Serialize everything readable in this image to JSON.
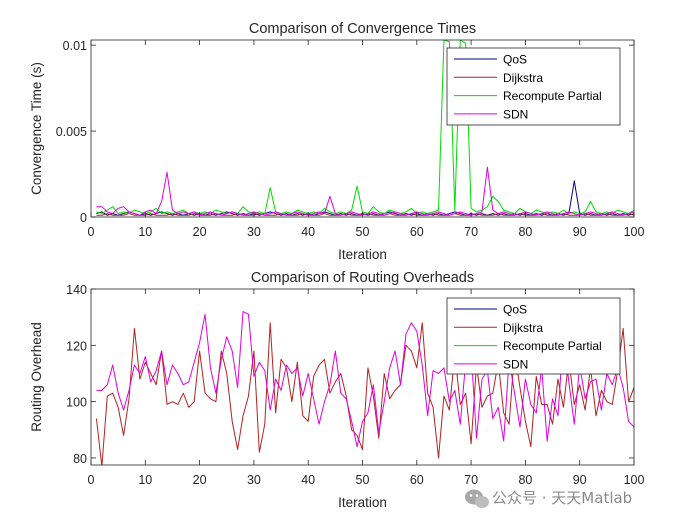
{
  "watermark": {
    "text": "公众号 · 天天Matlab",
    "icon": "wechat-icon"
  },
  "chart_data": [
    {
      "type": "line",
      "title": "Comparison of Convergence Times",
      "xlabel": "Iteration",
      "ylabel": "Convergence Time (s)",
      "xlim": [
        0,
        100
      ],
      "ylim": [
        0,
        0.0103
      ],
      "xticks": [
        0,
        10,
        20,
        30,
        40,
        50,
        60,
        70,
        80,
        90,
        100
      ],
      "xtick_labels": [
        "0",
        "10",
        "20",
        "30",
        "40",
        "50",
        "60",
        "70",
        "80",
        "90",
        "100"
      ],
      "yticks": [
        0,
        0.005,
        0.01
      ],
      "ytick_labels": [
        "0",
        "0.005",
        "0.01"
      ],
      "grid": false,
      "legend_position": "top-right",
      "series": [
        {
          "name": "QoS",
          "color": "#00008B",
          "x_start": 1,
          "values": [
            0.0002,
            0.0003,
            0.0001,
            0.0002,
            0.0001,
            0.0002,
            0.0003,
            0.0002,
            0.0001,
            0.0002,
            0.0001,
            0.0002,
            0.0003,
            0.0002,
            0.0001,
            0.0002,
            0.0001,
            0.0002,
            0.0001,
            0.0002,
            0.0001,
            0.0002,
            0.0001,
            0.0002,
            0.0003,
            0.0002,
            0.0001,
            0.0002,
            0.0001,
            0.0002,
            0.0001,
            0.0002,
            0.0003,
            0.0002,
            0.0001,
            0.0002,
            0.0001,
            0.0002,
            0.0001,
            0.0002,
            0.0001,
            0.0002,
            0.0003,
            0.0002,
            0.0001,
            0.0002,
            0.0001,
            0.0002,
            0.0001,
            0.0002,
            0.0001,
            0.0002,
            0.0001,
            0.0002,
            0.0003,
            0.0002,
            0.0001,
            0.0002,
            0.0001,
            0.0002,
            0.0001,
            0.0002,
            0.0001,
            0.0002,
            0.0001,
            0.0002,
            0.0003,
            0.0002,
            0.0001,
            0.0002,
            0.0001,
            0.0002,
            0.0001,
            0.0002,
            0.0001,
            0.0002,
            0.0001,
            0.0002,
            0.0001,
            0.0002,
            0.0001,
            0.0002,
            0.0001,
            0.0002,
            0.0001,
            0.0002,
            0.0001,
            0.0002,
            0.0021,
            0.0002,
            0.0001,
            0.0002,
            0.0001,
            0.0002,
            0.0001,
            0.0002,
            0.0001,
            0.0002,
            0.0001,
            0.0002
          ]
        },
        {
          "name": "Dijkstra",
          "color": "#B22222",
          "x_start": 1,
          "values": [
            0.0001,
            0.0001,
            0.0002,
            0.0001,
            0.0001,
            0.0001,
            0.0002,
            0.0001,
            0.0001,
            0.0001,
            0.0002,
            0.0001,
            0.0001,
            0.0001,
            0.0002,
            0.0001,
            0.0001,
            0.0001,
            0.0002,
            0.0001,
            0.0001,
            0.0001,
            0.0002,
            0.0001,
            0.0001,
            0.0001,
            0.0002,
            0.0001,
            0.0001,
            0.0001,
            0.0002,
            0.0001,
            0.0001,
            0.0001,
            0.0002,
            0.0001,
            0.0001,
            0.0001,
            0.0002,
            0.0001,
            0.0001,
            0.0001,
            0.0002,
            0.0001,
            0.0001,
            0.0001,
            0.0002,
            0.0001,
            0.0001,
            0.0001,
            0.0002,
            0.0001,
            0.0001,
            0.0001,
            0.0002,
            0.0001,
            0.0001,
            0.0001,
            0.0002,
            0.0001,
            0.0001,
            0.0001,
            0.0002,
            0.0001,
            0.0001,
            0.0001,
            0.0002,
            0.0001,
            0.0001,
            0.0001,
            0.0002,
            0.0001,
            0.0001,
            0.0001,
            0.0002,
            0.0001,
            0.0001,
            0.0001,
            0.0002,
            0.0001,
            0.0001,
            0.0001,
            0.0002,
            0.0001,
            0.0001,
            0.0001,
            0.0002,
            0.0001,
            0.0001,
            0.0001,
            0.0002,
            0.0001,
            0.0001,
            0.0001,
            0.0002,
            0.0001,
            0.0001,
            0.0001,
            0.0002,
            0.0001
          ]
        },
        {
          "name": "Recompute Partial",
          "color": "#00DD00",
          "x_start": 1,
          "values": [
            0.0003,
            0.0002,
            0.0004,
            0.0006,
            0.0002,
            0.0003,
            0.0002,
            0.0004,
            0.0003,
            0.0002,
            0.0003,
            0.0005,
            0.0002,
            0.0003,
            0.0002,
            0.0003,
            0.0004,
            0.0002,
            0.0003,
            0.0002,
            0.0003,
            0.0002,
            0.0004,
            0.0003,
            0.0002,
            0.0003,
            0.0002,
            0.0006,
            0.0003,
            0.0002,
            0.0003,
            0.0002,
            0.0017,
            0.0003,
            0.0002,
            0.0003,
            0.0002,
            0.0004,
            0.0003,
            0.0002,
            0.0003,
            0.0002,
            0.0005,
            0.0003,
            0.0002,
            0.0003,
            0.0002,
            0.0004,
            0.0018,
            0.0003,
            0.0002,
            0.0006,
            0.0003,
            0.0002,
            0.0004,
            0.0003,
            0.0002,
            0.0003,
            0.0005,
            0.0002,
            0.0003,
            0.0002,
            0.0003,
            0.0004,
            0.0103,
            0.0102,
            0.0004,
            0.0103,
            0.0101,
            0.0005,
            0.0003,
            0.0004,
            0.0006,
            0.0012,
            0.0009,
            0.0004,
            0.0003,
            0.0002,
            0.0005,
            0.0003,
            0.0002,
            0.0004,
            0.0003,
            0.0002,
            0.0003,
            0.0002,
            0.0004,
            0.0002,
            0.0003,
            0.0002,
            0.0003,
            0.0009,
            0.0003,
            0.0002,
            0.0003,
            0.0002,
            0.0004,
            0.0003,
            0.0002,
            0.0004
          ]
        },
        {
          "name": "SDN",
          "color": "#E000E0",
          "x_start": 1,
          "values": [
            0.0006,
            0.0006,
            0.0003,
            0.0002,
            0.0005,
            0.0006,
            0.0003,
            0.0002,
            0.0001,
            0.0003,
            0.0004,
            0.0002,
            0.0009,
            0.0026,
            0.0004,
            0.0002,
            0.0003,
            0.0002,
            0.0003,
            0.0001,
            0.0002,
            0.0003,
            0.0002,
            0.0001,
            0.0002,
            0.0003,
            0.0002,
            0.0001,
            0.0002,
            0.0003,
            0.0002,
            0.0001,
            0.0002,
            0.0003,
            0.0002,
            0.0001,
            0.0002,
            0.0003,
            0.0002,
            0.0001,
            0.0002,
            0.0003,
            0.0002,
            0.0012,
            0.0002,
            0.0001,
            0.0002,
            0.0003,
            0.0002,
            0.0001,
            0.0002,
            0.0003,
            0.0002,
            0.0001,
            0.0002,
            0.0003,
            0.0002,
            0.0001,
            0.0002,
            0.0003,
            0.0002,
            0.0001,
            0.0002,
            0.0003,
            0.0002,
            0.0001,
            0.0002,
            0.0003,
            0.0002,
            0.0001,
            0.0002,
            0.0003,
            0.0029,
            0.0004,
            0.0002,
            0.0003,
            0.0002,
            0.0001,
            0.0002,
            0.0003,
            0.0002,
            0.0001,
            0.0002,
            0.0003,
            0.0002,
            0.0001,
            0.0002,
            0.0003,
            0.0002,
            0.0001,
            0.0002,
            0.0003,
            0.0002,
            0.0001,
            0.0002,
            0.0003,
            0.0002,
            0.0001,
            0.0002,
            0.0003
          ]
        }
      ]
    },
    {
      "type": "line",
      "title": "Comparison of Routing Overheads",
      "xlabel": "Iteration",
      "ylabel": "Routing Overhead",
      "xlim": [
        0,
        100
      ],
      "ylim": [
        77.5,
        140
      ],
      "xticks": [
        0,
        10,
        20,
        30,
        40,
        50,
        60,
        70,
        80,
        90,
        100
      ],
      "xtick_labels": [
        "0",
        "10",
        "20",
        "30",
        "40",
        "50",
        "60",
        "70",
        "80",
        "90",
        "100"
      ],
      "yticks": [
        80,
        100,
        120,
        140
      ],
      "ytick_labels": [
        "80",
        "100",
        "120",
        "140"
      ],
      "grid": false,
      "legend_position": "top-right",
      "series": [
        {
          "name": "QoS",
          "color": "#00008B",
          "x_start": 1,
          "values": []
        },
        {
          "name": "Dijkstra",
          "color": "#B22222",
          "x_start": 1,
          "values": [
            94,
            77,
            102,
            103,
            98,
            88,
            101,
            126,
            108,
            114,
            110,
            106,
            118,
            99,
            100,
            99,
            103,
            98,
            100,
            118,
            103,
            101,
            100,
            118,
            110,
            93,
            83,
            95,
            102,
            118,
            82,
            92,
            128,
            96,
            115,
            112,
            100,
            114,
            95,
            93,
            109,
            113,
            115,
            103,
            107,
            110,
            102,
            90,
            88,
            83,
            112,
            102,
            87,
            110,
            101,
            104,
            106,
            120,
            118,
            112,
            128,
            103,
            98,
            80,
            102,
            97,
            117,
            99,
            103,
            85,
            113,
            98,
            102,
            103,
            114,
            96,
            92,
            118,
            105,
            93,
            84,
            109,
            99,
            99,
            92,
            108,
            98,
            115,
            99,
            106,
            97,
            112,
            95,
            104,
            100,
            99,
            111,
            126,
            100,
            105
          ]
        },
        {
          "name": "Recompute Partial",
          "color": "#00DD00",
          "x_start": 1,
          "values": []
        },
        {
          "name": "SDN",
          "color": "#E000E0",
          "x_start": 1,
          "values": [
            104,
            104,
            106,
            113,
            103,
            97,
            104,
            113,
            110,
            116,
            107,
            111,
            118,
            106,
            113,
            110,
            106,
            107,
            114,
            121,
            131,
            112,
            103,
            115,
            123,
            118,
            105,
            132,
            131,
            109,
            114,
            111,
            97,
            108,
            104,
            113,
            110,
            112,
            102,
            110,
            101,
            92,
            100,
            106,
            118,
            103,
            101,
            93,
            84,
            93,
            96,
            106,
            89,
            100,
            112,
            118,
            106,
            124,
            128,
            125,
            113,
            95,
            111,
            110,
            112,
            100,
            104,
            92,
            114,
            118,
            87,
            108,
            111,
            94,
            98,
            86,
            115,
            103,
            91,
            108,
            99,
            96,
            112,
            86,
            101,
            95,
            124,
            107,
            92,
            113,
            101,
            107,
            108,
            97,
            110,
            106,
            112,
            105,
            93,
            91
          ]
        }
      ]
    }
  ]
}
